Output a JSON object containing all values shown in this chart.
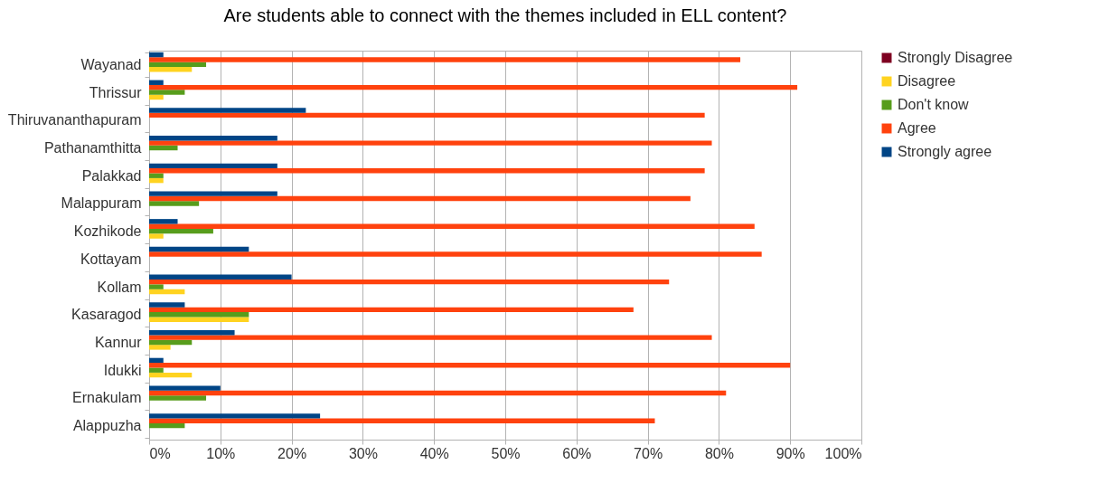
{
  "chart_data": {
    "type": "bar",
    "orientation": "horizontal",
    "title": "Are students able to connect with the themes included in ELL content?",
    "categories": [
      "Wayanad",
      "Thrissur",
      "Thiruvananthapuram",
      "Pathanamthitta",
      "Palakkad",
      "Malappuram",
      "Kozhikode",
      "Kottayam",
      "Kollam",
      "Kasaragod",
      "Kannur",
      "Idukki",
      "Ernakulam",
      "Alappuzha"
    ],
    "series": [
      {
        "name": "Strongly Disagree",
        "color": "#7e0021",
        "values": [
          0,
          0,
          0,
          0,
          0,
          0,
          0,
          0,
          0,
          0,
          0,
          0,
          0,
          0
        ]
      },
      {
        "name": "Disagree",
        "color": "#ffd320",
        "values": [
          6,
          2,
          0,
          0,
          2,
          0,
          2,
          0,
          5,
          14,
          3,
          6,
          0,
          0
        ]
      },
      {
        "name": "Don't know",
        "color": "#579d1c",
        "values": [
          8,
          5,
          0,
          4,
          2,
          7,
          9,
          0,
          2,
          14,
          6,
          2,
          8,
          5
        ]
      },
      {
        "name": "Agree",
        "color": "#ff420e",
        "values": [
          83,
          91,
          78,
          79,
          78,
          76,
          85,
          86,
          73,
          68,
          79,
          90,
          81,
          71
        ]
      },
      {
        "name": "Strongly agree",
        "color": "#004586",
        "values": [
          2,
          2,
          22,
          18,
          18,
          18,
          4,
          14,
          20,
          5,
          12,
          2,
          10,
          24
        ]
      }
    ],
    "xlim": [
      0,
      100
    ],
    "xticks": [
      {
        "value": 0,
        "label": "0%"
      },
      {
        "value": 10,
        "label": "10%"
      },
      {
        "value": 20,
        "label": "20%"
      },
      {
        "value": 30,
        "label": "30%"
      },
      {
        "value": 40,
        "label": "40%"
      },
      {
        "value": 50,
        "label": "50%"
      },
      {
        "value": 60,
        "label": "60%"
      },
      {
        "value": 70,
        "label": "70%"
      },
      {
        "value": 80,
        "label": "80%"
      },
      {
        "value": 90,
        "label": "90%"
      },
      {
        "value": 100,
        "label": "100%"
      }
    ],
    "grid": "x",
    "legend": "right"
  }
}
